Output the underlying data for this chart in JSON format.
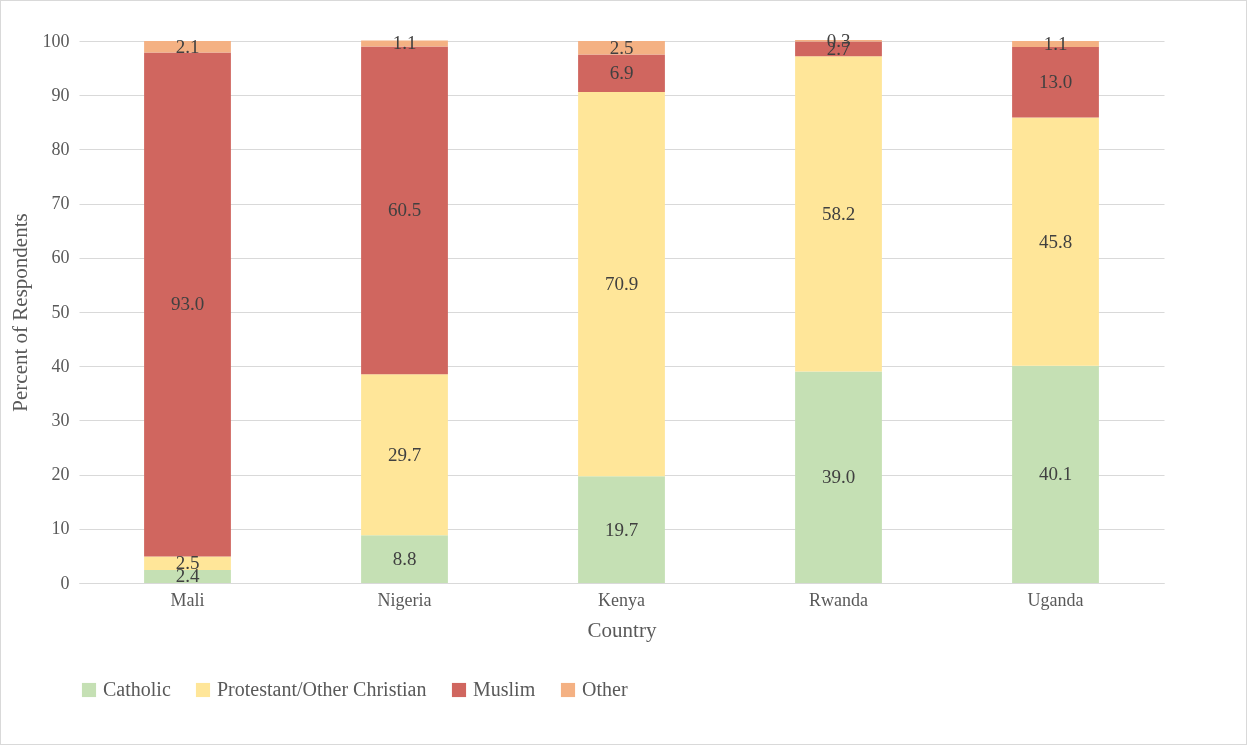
{
  "chart_data": {
    "type": "bar",
    "stacked": true,
    "xlabel": "Country",
    "ylabel": "Percent of Respondents",
    "categories": [
      "Mali",
      "Nigeria",
      "Kenya",
      "Rwanda",
      "Uganda"
    ],
    "series": [
      {
        "name": "Catholic",
        "color": "#c5e0b4",
        "values": [
          2.4,
          8.8,
          19.7,
          39.0,
          40.1
        ],
        "value_labels": [
          "2.4",
          "8.8",
          "19.7",
          "39.0",
          "40.1"
        ]
      },
      {
        "name": "Protestant/Other Christian",
        "color": "#ffe699",
        "values": [
          2.5,
          29.7,
          70.9,
          58.2,
          45.8
        ],
        "value_labels": [
          "2.5",
          "29.7",
          "70.9",
          "58.2",
          "45.8"
        ]
      },
      {
        "name": "Muslim",
        "color": "#d0665f",
        "values": [
          93.0,
          60.5,
          6.9,
          2.7,
          13.0
        ],
        "value_labels": [
          "93.0",
          "60.5",
          "6.9",
          "2.7",
          "13.0"
        ]
      },
      {
        "name": "Other",
        "color": "#f4b183",
        "values": [
          2.1,
          1.1,
          2.5,
          0.3,
          1.1
        ],
        "value_labels": [
          "2.1",
          "1.1",
          "2.5",
          "0.3",
          "1.1"
        ]
      }
    ],
    "ylim": [
      0,
      100
    ],
    "yticks": [
      0,
      10,
      20,
      30,
      40,
      50,
      60,
      70,
      80,
      90,
      100
    ],
    "grid": "y",
    "legend": "bottom"
  }
}
